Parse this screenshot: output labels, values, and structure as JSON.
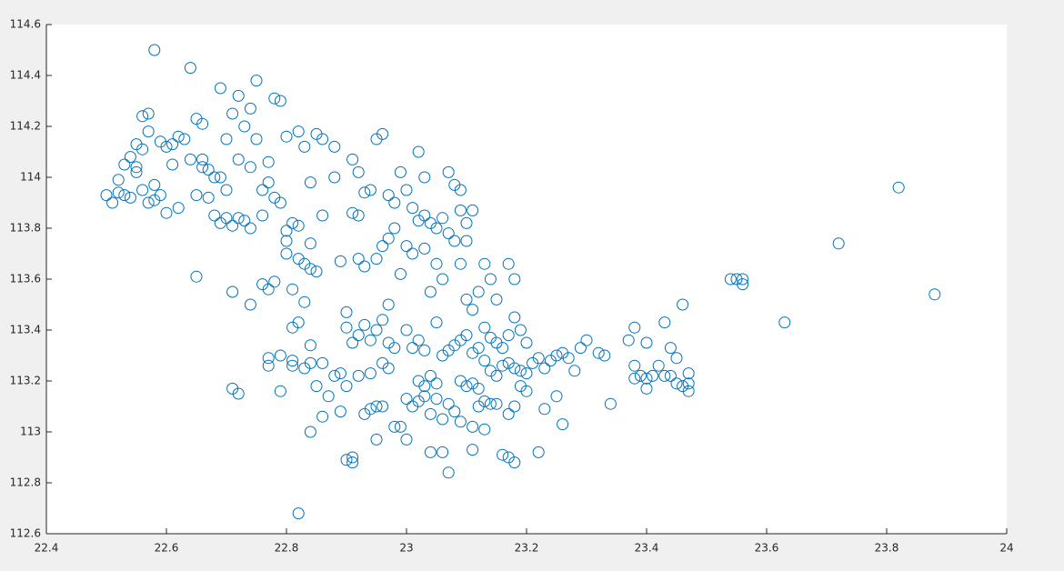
{
  "chart_data": {
    "type": "scatter",
    "color": "#0072bd",
    "marker": "circle-open",
    "grid": false,
    "x": [
      22.5,
      22.51,
      22.52,
      22.53,
      22.54,
      22.53,
      22.54,
      22.55,
      22.56,
      22.55,
      22.56,
      22.57,
      22.58,
      22.59,
      22.58,
      22.56,
      22.57,
      22.59,
      22.6,
      22.58,
      22.61,
      22.6,
      22.62,
      22.63,
      22.64,
      22.65,
      22.66,
      22.64,
      22.66,
      22.67,
      22.65,
      22.67,
      22.68,
      22.69,
      22.7,
      22.71,
      22.69,
      22.7,
      22.7,
      22.71,
      22.72,
      22.73,
      22.74,
      22.69,
      22.75,
      22.72,
      22.74,
      22.75,
      22.77,
      22.78,
      22.79,
      22.76,
      22.74,
      22.73,
      22.65,
      22.71,
      22.74,
      22.76,
      22.77,
      22.78,
      22.8,
      22.79,
      22.78,
      22.8,
      22.81,
      22.82,
      22.8,
      22.82,
      22.83,
      22.84,
      22.81,
      22.83,
      22.81,
      22.82,
      22.84,
      22.77,
      22.77,
      22.79,
      22.81,
      22.81,
      22.83,
      22.84,
      22.86,
      22.79,
      22.71,
      22.72,
      22.85,
      22.87,
      22.88,
      22.89,
      22.9,
      22.86,
      22.84,
      22.89,
      22.9,
      22.91,
      22.91,
      22.82,
      22.8,
      22.82,
      22.83,
      22.85,
      22.86,
      22.88,
      22.84,
      22.86,
      22.88,
      22.89,
      22.85,
      22.84,
      22.9,
      22.9,
      22.91,
      22.92,
      22.93,
      22.94,
      22.95,
      22.96,
      22.97,
      22.98,
      22.97,
      22.92,
      22.94,
      22.96,
      22.97,
      22.93,
      22.94,
      22.95,
      22.96,
      22.98,
      22.99,
      22.95,
      22.91,
      22.92,
      22.93,
      22.94,
      22.95,
      22.96,
      22.91,
      22.92,
      22.95,
      22.93,
      22.92,
      22.96,
      22.97,
      22.98,
      22.99,
      22.98,
      22.97,
      22.99,
      23,
      23.01,
      23.02,
      23.03,
      23.04,
      23.05,
      23.06,
      23.07,
      23.08,
      23.09,
      23.1,
      23.11,
      23.02,
      23.03,
      23.07,
      23.08,
      23.09,
      23,
      23.01,
      23.03,
      23.05,
      23.06,
      23.04,
      23.09,
      23.1,
      23.12,
      23.13,
      23.14,
      23.17,
      23.18,
      23.1,
      23.15,
      23.11,
      23,
      23.01,
      23.02,
      23.03,
      23.05,
      23.06,
      23.07,
      23.08,
      23.09,
      23.1,
      23.11,
      23.12,
      23.13,
      23.14,
      23.15,
      23.16,
      23.17,
      23.18,
      23.19,
      23.2,
      23.13,
      23.14,
      23.15,
      23.16,
      23.17,
      23.18,
      23.19,
      23.2,
      23.21,
      23.22,
      23.23,
      23.24,
      23.25,
      23.26,
      23.27,
      23.28,
      23.29,
      23.3,
      23.19,
      23.2,
      23.02,
      23.03,
      23.04,
      23.05,
      23.09,
      23.1,
      23.11,
      23.12,
      23,
      23.01,
      23.02,
      23.03,
      23.04,
      23.05,
      23.06,
      23.07,
      23.08,
      23.09,
      23.12,
      23.13,
      23.14,
      23.15,
      23.11,
      23.13,
      23,
      23.04,
      23.06,
      23.07,
      23.11,
      23.16,
      23.17,
      23.18,
      23.22,
      23.17,
      23.18,
      23.23,
      23.25,
      23.26,
      23.32,
      23.33,
      23.34,
      23.37,
      23.38,
      23.38,
      23.39,
      23.4,
      23.41,
      23.4,
      23.38,
      23.4,
      23.42,
      23.43,
      23.43,
      23.44,
      23.45,
      23.46,
      23.44,
      23.45,
      23.46,
      23.47,
      23.47,
      23.47,
      23.54,
      23.55,
      23.56,
      23.56,
      23.63,
      23.72,
      23.82,
      23.88,
      22.66,
      22.68,
      22.61,
      22.62,
      22.57,
      22.55,
      22.52,
      22.72,
      22.76,
      22.77
    ],
    "values": [
      113.93,
      113.9,
      113.94,
      113.93,
      113.92,
      114.05,
      114.08,
      114.13,
      114.11,
      114.02,
      113.95,
      113.9,
      113.91,
      113.93,
      113.97,
      114.24,
      114.18,
      114.14,
      114.12,
      114.5,
      114.05,
      113.86,
      113.88,
      114.15,
      114.07,
      114.23,
      114.21,
      114.43,
      114.07,
      114.03,
      113.93,
      113.92,
      113.85,
      113.82,
      113.84,
      113.81,
      114,
      113.95,
      114.15,
      114.25,
      114.32,
      114.2,
      114.27,
      114.35,
      114.38,
      114.07,
      114.04,
      114.15,
      114.06,
      114.31,
      114.3,
      113.85,
      113.8,
      113.83,
      113.61,
      113.55,
      113.5,
      113.58,
      113.56,
      113.59,
      113.7,
      113.9,
      113.92,
      113.79,
      113.82,
      113.81,
      113.75,
      113.68,
      113.66,
      113.74,
      113.56,
      113.51,
      113.41,
      113.43,
      113.34,
      113.29,
      113.26,
      113.3,
      113.28,
      113.26,
      113.25,
      113.27,
      113.27,
      113.16,
      113.17,
      113.15,
      113.18,
      113.14,
      113.22,
      113.23,
      113.18,
      113.06,
      113,
      113.08,
      112.89,
      112.9,
      112.88,
      112.68,
      114.16,
      114.18,
      114.12,
      114.17,
      114.15,
      114.12,
      113.98,
      113.85,
      114,
      113.67,
      113.63,
      113.64,
      113.47,
      113.41,
      113.35,
      113.38,
      113.42,
      113.36,
      113.4,
      113.44,
      113.35,
      113.33,
      113.5,
      113.22,
      113.23,
      113.27,
      113.25,
      113.07,
      113.09,
      113.1,
      113.1,
      113.02,
      113.02,
      112.97,
      113.86,
      113.85,
      113.94,
      113.95,
      114.15,
      114.17,
      114.07,
      114.02,
      113.68,
      113.65,
      113.68,
      113.73,
      113.76,
      113.8,
      113.62,
      113.9,
      113.93,
      114.02,
      113.95,
      113.88,
      113.83,
      113.85,
      113.82,
      113.8,
      113.84,
      113.78,
      113.75,
      113.87,
      113.82,
      113.87,
      114.1,
      114,
      114.02,
      113.97,
      113.95,
      113.73,
      113.7,
      113.72,
      113.66,
      113.6,
      113.55,
      113.66,
      113.75,
      113.55,
      113.66,
      113.6,
      113.66,
      113.6,
      113.52,
      113.52,
      113.48,
      113.4,
      113.33,
      113.36,
      113.32,
      113.43,
      113.3,
      113.32,
      113.34,
      113.36,
      113.38,
      113.31,
      113.33,
      113.41,
      113.37,
      113.35,
      113.33,
      113.38,
      113.45,
      113.4,
      113.35,
      113.28,
      113.24,
      113.22,
      113.26,
      113.27,
      113.25,
      113.24,
      113.23,
      113.27,
      113.29,
      113.25,
      113.28,
      113.3,
      113.31,
      113.29,
      113.24,
      113.33,
      113.36,
      113.18,
      113.16,
      113.2,
      113.18,
      113.22,
      113.19,
      113.2,
      113.18,
      113.19,
      113.17,
      113.13,
      113.1,
      113.12,
      113.14,
      113.07,
      113.13,
      113.05,
      113.11,
      113.08,
      113.04,
      113.1,
      113.12,
      113.11,
      113.11,
      113.02,
      113.01,
      112.97,
      112.92,
      112.92,
      112.84,
      112.93,
      112.91,
      112.9,
      112.88,
      112.92,
      113.07,
      113.1,
      113.09,
      113.14,
      113.03,
      113.31,
      113.3,
      113.11,
      113.36,
      113.26,
      113.21,
      113.22,
      113.21,
      113.22,
      113.17,
      113.41,
      113.35,
      113.26,
      113.22,
      113.43,
      113.33,
      113.29,
      113.5,
      113.22,
      113.19,
      113.18,
      113.16,
      113.19,
      113.23,
      113.6,
      113.6,
      113.6,
      113.58,
      113.43,
      113.74,
      113.96,
      113.54,
      114.04,
      114,
      114.13,
      114.16,
      114.25,
      114.04,
      113.99,
      113.84,
      113.95,
      113.98
    ],
    "xlim": [
      22.4,
      24
    ],
    "xticks": [
      22.4,
      22.6,
      22.8,
      23,
      23.2,
      23.4,
      23.6,
      23.8,
      24
    ],
    "ylim": [
      112.6,
      114.6
    ],
    "yticks": [
      112.6,
      112.8,
      113,
      113.2,
      113.4,
      113.6,
      113.8,
      114,
      114.2,
      114.4,
      114.6
    ]
  }
}
